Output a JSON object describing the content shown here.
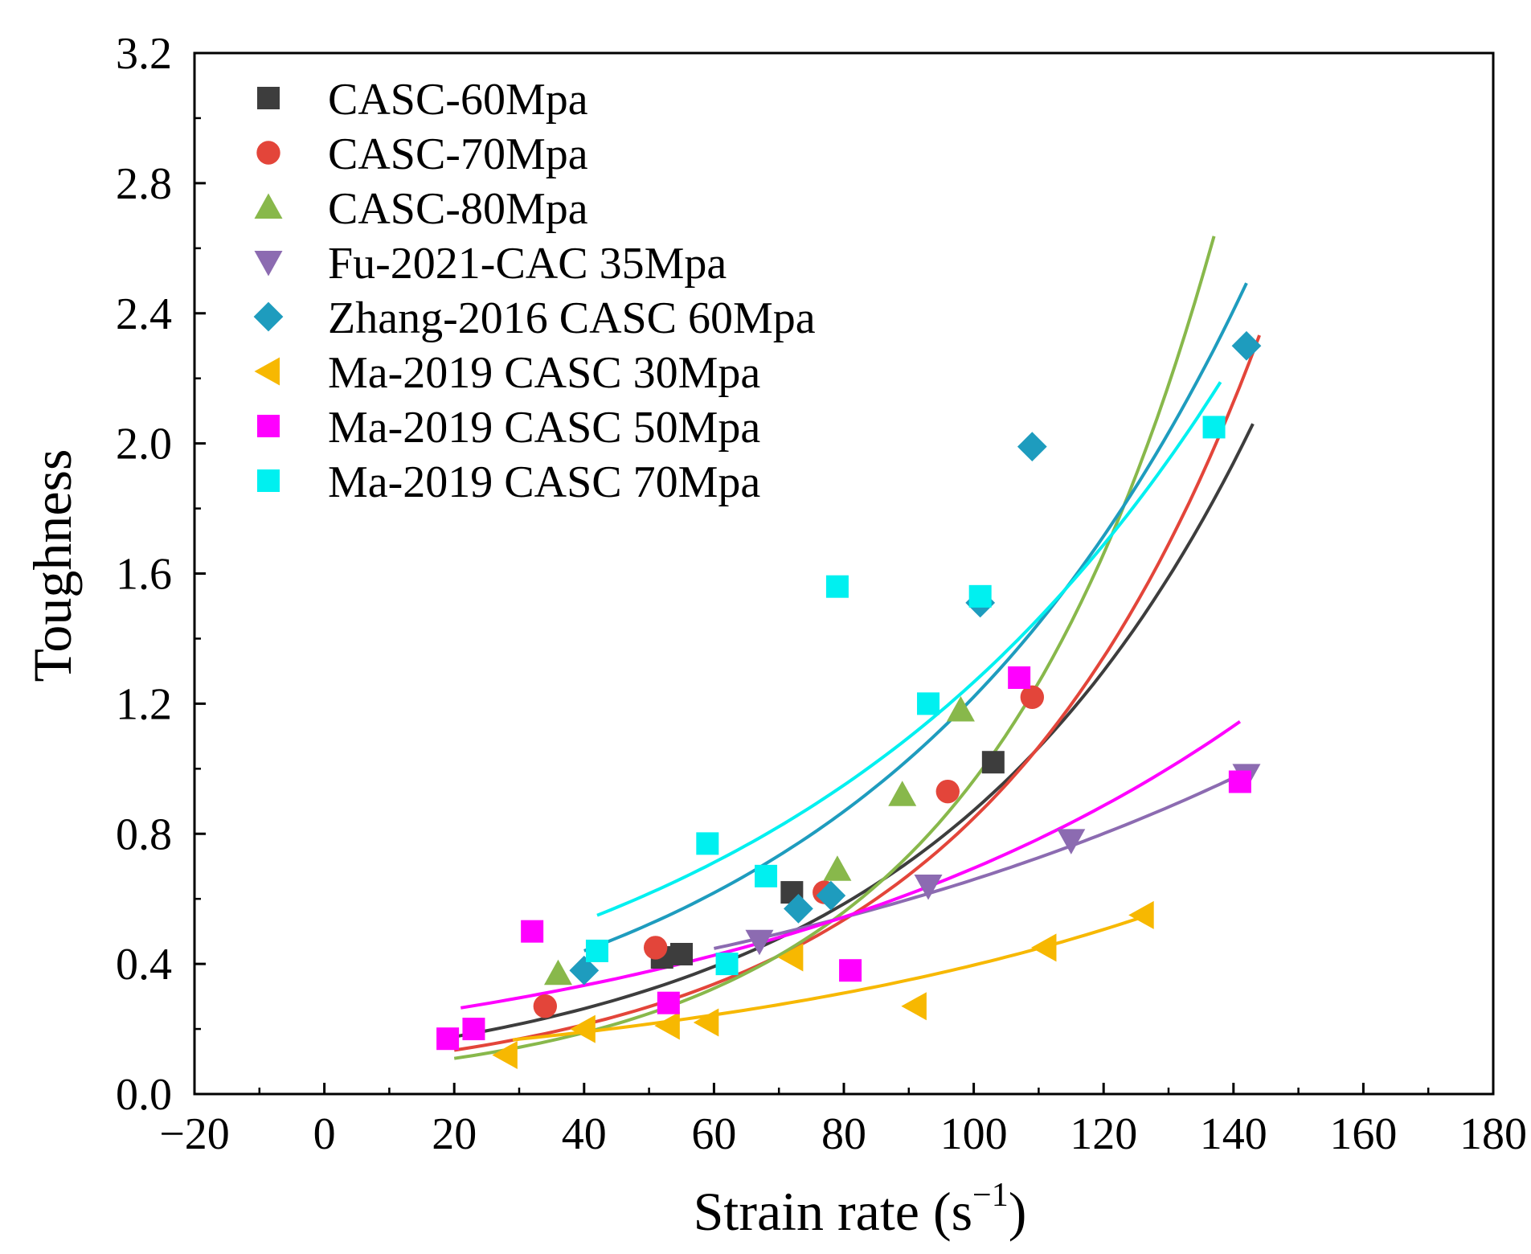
{
  "chart_data": {
    "type": "scatter",
    "title": "",
    "xlabel": "Strain rate (s",
    "xlabel_sup": "−1",
    "xlabel_close": ")",
    "ylabel": "Toughness",
    "xlim": [
      -20,
      180
    ],
    "ylim": [
      0.0,
      3.2
    ],
    "x_ticks": [
      -20,
      0,
      20,
      40,
      60,
      80,
      100,
      120,
      140,
      160,
      180
    ],
    "x_tick_labels": [
      "−20",
      "0",
      "20",
      "40",
      "60",
      "80",
      "100",
      "120",
      "140",
      "160",
      "180"
    ],
    "y_ticks": [
      0.0,
      0.4,
      0.8,
      1.2,
      1.6,
      2.0,
      2.4,
      2.8,
      3.2
    ],
    "y_tick_labels": [
      "0.0",
      "0.4",
      "0.8",
      "1.2",
      "1.6",
      "2.0",
      "2.4",
      "2.8",
      "3.2"
    ],
    "grid": false,
    "legend_position": "top-left",
    "series": [
      {
        "name": "CASC-60Mpa",
        "marker": "square",
        "color": "#3d3d3d",
        "points": [
          [
            52,
            0.42
          ],
          [
            55,
            0.43
          ],
          [
            72,
            0.62
          ],
          [
            103,
            1.02
          ]
        ],
        "fit": {
          "type": "exponential",
          "x_range": [
            20,
            143
          ],
          "a": 0.118,
          "b": 0.02
        }
      },
      {
        "name": "CASC-70Mpa",
        "marker": "circle",
        "color": "#e3453a",
        "points": [
          [
            34,
            0.27
          ],
          [
            51,
            0.45
          ],
          [
            77,
            0.62
          ],
          [
            96,
            0.93
          ],
          [
            109,
            1.22
          ]
        ],
        "fit": {
          "type": "exponential",
          "x_range": [
            20,
            144
          ],
          "a": 0.085,
          "b": 0.023
        }
      },
      {
        "name": "CASC-80Mpa",
        "marker": "triangle-up",
        "color": "#88b84b",
        "points": [
          [
            36,
            0.37
          ],
          [
            79,
            0.69
          ],
          [
            89,
            0.92
          ],
          [
            98,
            1.18
          ]
        ],
        "fit": {
          "type": "exponential",
          "x_range": [
            20,
            137
          ],
          "a": 0.0635,
          "b": 0.0272
        }
      },
      {
        "name": "Fu-2021-CAC 35Mpa",
        "marker": "triangle-down",
        "color": "#8c6bb1",
        "points": [
          [
            67,
            0.47
          ],
          [
            93,
            0.64
          ],
          [
            115,
            0.78
          ],
          [
            142,
            0.98
          ]
        ],
        "fit": {
          "type": "exponential",
          "x_range": [
            60,
            143
          ],
          "a": 0.25,
          "b": 0.0097
        }
      },
      {
        "name": "Zhang-2016 CASC 60Mpa",
        "marker": "diamond",
        "color": "#1e9cbe",
        "points": [
          [
            40,
            0.38
          ],
          [
            73,
            0.57
          ],
          [
            78,
            0.61
          ],
          [
            101,
            1.51
          ],
          [
            109,
            1.99
          ],
          [
            142,
            2.3
          ]
        ],
        "fit": {
          "type": "exponential",
          "x_range": [
            40,
            142
          ],
          "a": 0.223,
          "b": 0.017
        }
      },
      {
        "name": "Ma-2019 CASC 30Mpa",
        "marker": "triangle-left",
        "color": "#f7b801",
        "points": [
          [
            28,
            0.12
          ],
          [
            40,
            0.2
          ],
          [
            53,
            0.21
          ],
          [
            59,
            0.22
          ],
          [
            72,
            0.42
          ],
          [
            91,
            0.27
          ],
          [
            111,
            0.45
          ],
          [
            126,
            0.55
          ]
        ],
        "fit": {
          "type": "exponential",
          "x_range": [
            29,
            127
          ],
          "a": 0.117,
          "b": 0.0122
        }
      },
      {
        "name": "Ma-2019 CASC 50Mpa",
        "marker": "square",
        "color": "#ff00ff",
        "points": [
          [
            19,
            0.17
          ],
          [
            23,
            0.2
          ],
          [
            32,
            0.5
          ],
          [
            53,
            0.28
          ],
          [
            81,
            0.38
          ],
          [
            107,
            1.28
          ],
          [
            141,
            0.96
          ]
        ],
        "fit": {
          "type": "exponential",
          "x_range": [
            21,
            141
          ],
          "a": 0.205,
          "b": 0.0122
        }
      },
      {
        "name": "Ma-2019 CASC 70Mpa",
        "marker": "square",
        "color": "#00f0f0",
        "points": [
          [
            42,
            0.44
          ],
          [
            59,
            0.77
          ],
          [
            62,
            0.4
          ],
          [
            68,
            0.67
          ],
          [
            79,
            1.56
          ],
          [
            93,
            1.2
          ],
          [
            101,
            1.53
          ],
          [
            137,
            2.05
          ]
        ],
        "fit": {
          "type": "exponential",
          "x_range": [
            42,
            138
          ],
          "a": 0.3,
          "b": 0.0144
        }
      }
    ]
  }
}
